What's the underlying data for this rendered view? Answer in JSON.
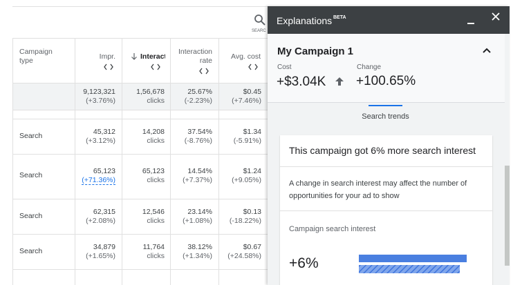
{
  "table": {
    "search_label": "SEARC",
    "headers": [
      "Campaign type",
      "Impr.",
      "Interact",
      "Interaction rate",
      "Avg. cost"
    ],
    "total": {
      "impr": "9,123,321",
      "impr_change": "(+3.76%)",
      "interactions": "1,56,678",
      "unit": "clicks",
      "rate": "25.67%",
      "rate_change": "(-2.23%)",
      "cost": "$0.45",
      "cost_change": "(+7.46%)"
    },
    "rows": [
      {
        "type": "Search",
        "impr": "45,312",
        "impr_change": "(+3.12%)",
        "interactions": "14,208",
        "unit": "clicks",
        "rate": "37.54%",
        "rate_change": "(-8.76%)",
        "cost": "$1.34",
        "cost_change": "(-5.91%)"
      },
      {
        "type": "Search",
        "impr": "65,123",
        "impr_change": "(+71.36%)",
        "interactions": "65,123",
        "unit": "clicks",
        "rate": "14.54%",
        "rate_change": "(+7.37%)",
        "cost": "$1.24",
        "cost_change": "(+9.05%)"
      },
      {
        "type": "Search",
        "impr": "62,315",
        "impr_change": "(+2.08%)",
        "interactions": "12,546",
        "unit": "clicks",
        "rate": "23.14%",
        "rate_change": "(+1.08%)",
        "cost": "$0.13",
        "cost_change": "(-18.22%)"
      },
      {
        "type": "Search",
        "impr": "34,879",
        "impr_change": "(+1.65%)",
        "interactions": "11,764",
        "unit": "clicks",
        "rate": "38.12%",
        "rate_change": "(+1.34%)",
        "cost": "$0.67",
        "cost_change": "(+24.58%)"
      }
    ]
  },
  "panel": {
    "title": "Explanations",
    "badge": "BETA",
    "campaign": "My Campaign 1",
    "cost_label": "Cost",
    "cost_value": "+$3.04K",
    "change_label": "Change",
    "change_value": "+100.65%",
    "tab": "Search trends",
    "card": {
      "title": "This campaign got 6% more search interest",
      "description": "A change in search interest may affect the number of opportunities for your ad to show",
      "section": "Campaign search interest",
      "big_value": "+6%"
    }
  }
}
